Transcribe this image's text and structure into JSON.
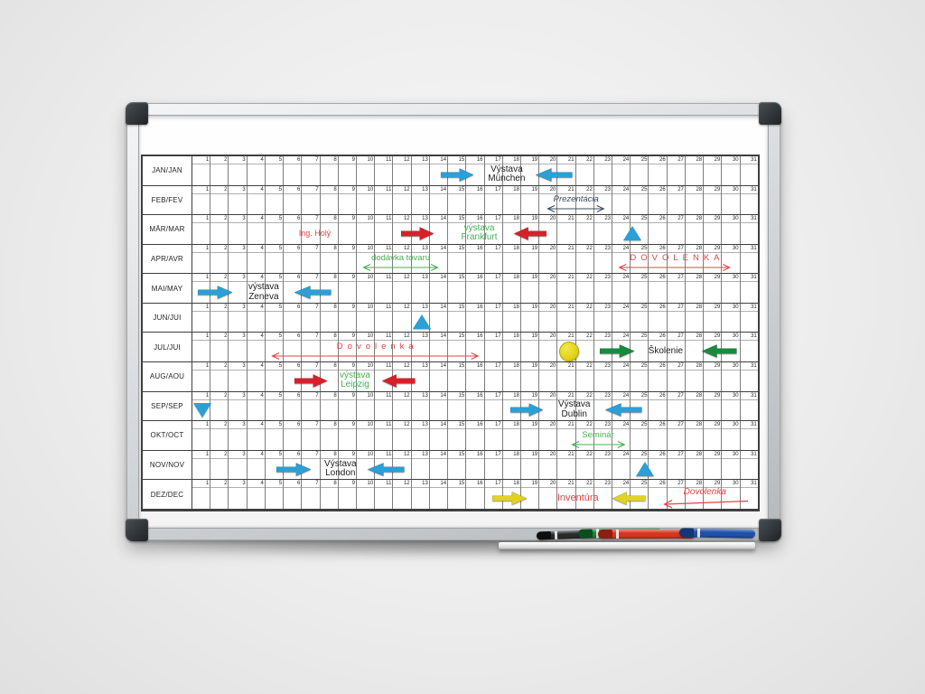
{
  "scene": {
    "description": "Photograph of a wall-mounted annual planner whiteboard with aluminium frame, dark corner caps, magnetic arrows and symbols, and a pen tray holding four markers"
  },
  "planner": {
    "months": [
      "JAN/JAN",
      "FEB/FEV",
      "MÄR/MAR",
      "APR/AVR",
      "MAI/MAY",
      "JUN/JUI",
      "JUL/JUI",
      "AUG/AOU",
      "SEP/SEP",
      "OKT/OCT",
      "NOV/NOV",
      "DEZ/DEC"
    ],
    "day_numbers": [
      1,
      2,
      3,
      4,
      5,
      6,
      7,
      8,
      9,
      10,
      11,
      12,
      13,
      14,
      15,
      16,
      17,
      18,
      19,
      20,
      21,
      22,
      23,
      24,
      25,
      26,
      27,
      28,
      29,
      30,
      31
    ]
  },
  "colors": {
    "blue": "#2b9fd6",
    "red": "#d8202a",
    "greenText": "#45b050",
    "greenArrow": "#1b8a41",
    "yellowArrow": "#e3d222",
    "redInk": "#e14444",
    "ink": "#3f4c5c",
    "black": "#1d1d1d"
  },
  "annotations": [
    {
      "month": 0,
      "day": 14.6,
      "span": 1.8,
      "type": "block-arrow-right",
      "color": "blue"
    },
    {
      "month": 0,
      "day": 16.6,
      "span": 3.2,
      "type": "text",
      "color": "black",
      "text": "Výstava\nMünchen"
    },
    {
      "month": 0,
      "day": 19.8,
      "span": 2.0,
      "type": "block-arrow-left",
      "color": "blue"
    },
    {
      "month": 1,
      "day": 20.3,
      "span": 3.4,
      "type": "range-label",
      "color": "ink",
      "text": "Prezentácia",
      "style": "hand"
    },
    {
      "month": 2,
      "day": 6.3,
      "span": 2.8,
      "type": "text",
      "color": "redInk",
      "text": "Ing. Holý",
      "size": 9
    },
    {
      "month": 2,
      "day": 12.4,
      "span": 1.8,
      "type": "block-arrow-right",
      "color": "red"
    },
    {
      "month": 2,
      "day": 15.0,
      "span": 3.4,
      "type": "text",
      "color": "greenText",
      "text": "výstava\nFrankfurt"
    },
    {
      "month": 2,
      "day": 18.6,
      "span": 1.8,
      "type": "block-arrow-left",
      "color": "red"
    },
    {
      "month": 2,
      "day": 24.6,
      "span": 1.0,
      "type": "triangle-up",
      "color": "blue"
    },
    {
      "month": 3,
      "day": 10.2,
      "span": 4.4,
      "type": "range-label",
      "color": "greenText",
      "text": "dodávka tovaru"
    },
    {
      "month": 3,
      "day": 24.2,
      "span": 6.4,
      "type": "range-label",
      "color": "redInk",
      "text": "DOVOLENKA",
      "style": "spaced"
    },
    {
      "month": 4,
      "day": 1.3,
      "span": 1.9,
      "type": "block-arrow-right",
      "color": "blue"
    },
    {
      "month": 4,
      "day": 3.3,
      "span": 3.2,
      "type": "text",
      "color": "black",
      "text": "výstava\nZeneva"
    },
    {
      "month": 4,
      "day": 6.6,
      "span": 2.0,
      "type": "block-arrow-left",
      "color": "blue"
    },
    {
      "month": 5,
      "day": 13.0,
      "span": 1.1,
      "type": "triangle-up",
      "color": "blue"
    },
    {
      "month": 6,
      "day": 5.2,
      "span": 11.6,
      "type": "range-label",
      "color": "redInk",
      "text": "Dovolenka",
      "style": "spaced"
    },
    {
      "month": 6,
      "day": 21.0,
      "span": 1.2,
      "type": "circle",
      "color": "yellowArrow"
    },
    {
      "month": 6,
      "day": 23.3,
      "span": 1.9,
      "type": "block-arrow-right",
      "color": "greenArrow"
    },
    {
      "month": 6,
      "day": 25.3,
      "span": 3.2,
      "type": "text",
      "color": "black",
      "text": "Školenie"
    },
    {
      "month": 6,
      "day": 28.9,
      "span": 1.9,
      "type": "block-arrow-left",
      "color": "greenArrow"
    },
    {
      "month": 7,
      "day": 6.6,
      "span": 1.8,
      "type": "block-arrow-right",
      "color": "red"
    },
    {
      "month": 7,
      "day": 8.4,
      "span": 3.0,
      "type": "text",
      "color": "greenText",
      "text": "výstava\nLeipzig"
    },
    {
      "month": 7,
      "day": 11.4,
      "span": 1.8,
      "type": "block-arrow-left",
      "color": "red"
    },
    {
      "month": 8,
      "day": 1.0,
      "span": 1.1,
      "type": "triangle-down",
      "color": "blue"
    },
    {
      "month": 8,
      "day": 18.4,
      "span": 1.8,
      "type": "block-arrow-right",
      "color": "blue"
    },
    {
      "month": 8,
      "day": 20.4,
      "span": 3.0,
      "type": "text",
      "color": "black",
      "text": "Výstava\nDublin"
    },
    {
      "month": 8,
      "day": 23.6,
      "span": 2.0,
      "type": "block-arrow-left",
      "color": "blue"
    },
    {
      "month": 9,
      "day": 21.6,
      "span": 3.2,
      "type": "range-label",
      "color": "greenText",
      "text": "Seminár"
    },
    {
      "month": 10,
      "day": 5.6,
      "span": 1.9,
      "type": "block-arrow-right",
      "color": "blue"
    },
    {
      "month": 10,
      "day": 7.6,
      "span": 3.0,
      "type": "text",
      "color": "black",
      "text": "Výstava\nLondon"
    },
    {
      "month": 10,
      "day": 10.6,
      "span": 2.0,
      "type": "block-arrow-left",
      "color": "blue"
    },
    {
      "month": 10,
      "day": 25.2,
      "span": 1.1,
      "type": "triangle-up",
      "color": "blue"
    },
    {
      "month": 11,
      "day": 17.4,
      "span": 1.9,
      "type": "block-arrow-right",
      "color": "yellowArrow"
    },
    {
      "month": 11,
      "day": 20.5,
      "span": 3.2,
      "type": "text",
      "color": "redInk",
      "text": "Inventúra",
      "size": 11
    },
    {
      "month": 11,
      "day": 24.0,
      "span": 1.8,
      "type": "block-arrow-left",
      "color": "yellowArrow"
    },
    {
      "month": 11,
      "day": 26.6,
      "span": 4.9,
      "type": "left-range-label",
      "color": "redInk",
      "text": "Dovolenka",
      "style": "hand"
    }
  ],
  "tray": {
    "markers": [
      {
        "name": "black marker",
        "color": "#2a2a2a",
        "cap": "#0e0e0e"
      },
      {
        "name": "green marker",
        "color": "#1d8038",
        "cap": "#0c4d1e"
      },
      {
        "name": "red marker",
        "color": "#d6341f",
        "cap": "#8e1d12"
      },
      {
        "name": "blue marker",
        "color": "#2050a8",
        "cap": "#143675"
      }
    ]
  }
}
